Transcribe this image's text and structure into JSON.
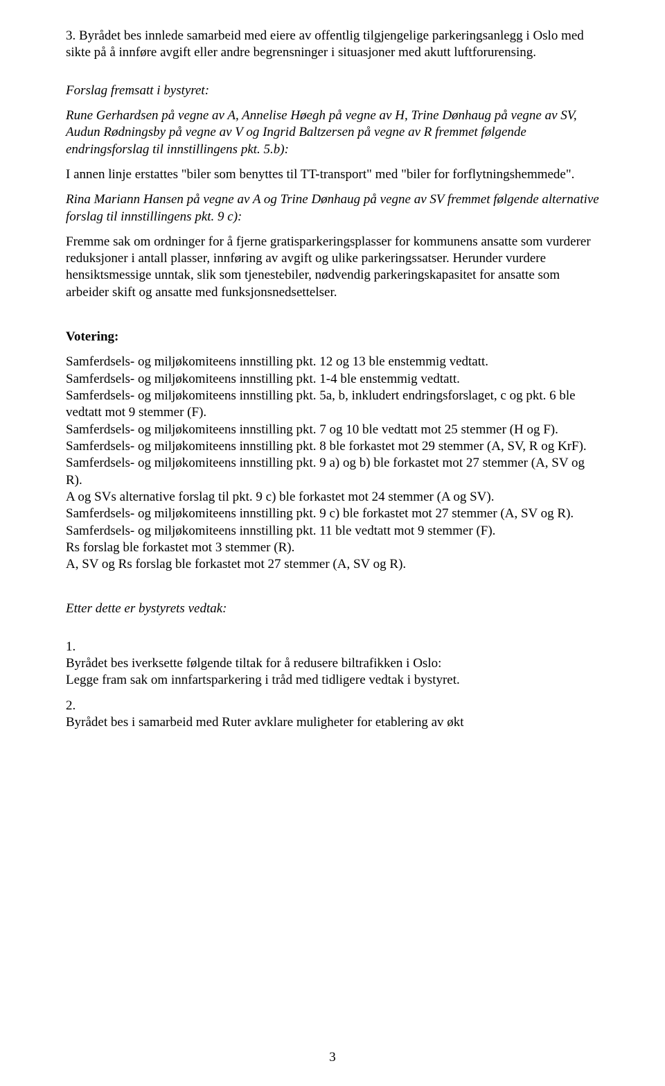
{
  "p1": "3. Byrådet bes innlede samarbeid med eiere av offentlig tilgjengelige parkeringsanlegg i Oslo med sikte på å innføre avgift eller andre begrensninger i situasjoner med akutt luftforurensing.",
  "p2": "Forslag fremsatt i bystyret:",
  "p3": "Rune Gerhardsen på vegne av A, Annelise Høegh på vegne av H, Trine Dønhaug på vegne av SV, Audun Rødningsby på vegne av V og Ingrid Baltzersen på vegne av R fremmet følgende endringsforslag til innstillingens pkt. 5.b):",
  "p4": "I annen linje erstattes \"biler som benyttes til TT-transport\" med \"biler for forflytningshemmede\".",
  "p5": "Rina Mariann Hansen på vegne av A og Trine Dønhaug på vegne av SV fremmet følgende alternative forslag til innstillingens pkt. 9 c):",
  "p6": "Fremme sak om ordninger for å fjerne gratisparkeringsplasser for kommunens ansatte som vurderer reduksjoner i antall plasser, innføring av avgift og ulike parkeringssatser. Herunder vurdere hensiktsmessige unntak, slik som tjenestebiler, nødvendig parkeringskapasitet for ansatte som arbeider skift og ansatte med funksjonsnedsettelser.",
  "votering_heading": "Votering:",
  "v1": "Samferdsels- og miljøkomiteens innstilling pkt. 12 og 13 ble enstemmig vedtatt.",
  "v2": "Samferdsels- og miljøkomiteens innstilling pkt. 1-4 ble enstemmig vedtatt.",
  "v3": "Samferdsels- og miljøkomiteens innstilling pkt. 5a, b, inkludert endringsforslaget, c og pkt. 6 ble vedtatt mot 9 stemmer (F).",
  "v4": "Samferdsels- og miljøkomiteens innstilling pkt. 7 og 10 ble vedtatt mot 25 stemmer (H og F).",
  "v5": "Samferdsels- og miljøkomiteens innstilling pkt. 8 ble forkastet mot 29 stemmer (A, SV, R og KrF).",
  "v6": "Samferdsels- og miljøkomiteens innstilling pkt. 9 a) og b) ble forkastet mot 27 stemmer (A, SV og R).",
  "v7": "A og SVs alternative forslag til pkt. 9 c) ble forkastet mot 24 stemmer (A og SV).",
  "v8": "Samferdsels- og miljøkomiteens innstilling pkt. 9 c) ble forkastet mot 27 stemmer (A, SV og R).",
  "v9": "Samferdsels- og miljøkomiteens innstilling pkt. 11 ble vedtatt mot 9 stemmer (F).",
  "v10": "Rs forslag ble forkastet mot 3 stemmer (R).",
  "v11": "A, SV og Rs forslag ble forkastet mot 27 stemmer (A, SV og R).",
  "vedtak_heading": "Etter dette er bystyrets vedtak:",
  "r1_num": "1.",
  "r1_a": "Byrådet bes iverksette følgende tiltak for å redusere biltrafikken i Oslo:",
  "r1_b": "Legge fram sak om innfartsparkering i tråd med tidligere vedtak i bystyret.",
  "r2_num": "2.",
  "r2_a": "Byrådet bes i samarbeid med Ruter avklare muligheter for etablering av økt",
  "page_number": "3"
}
